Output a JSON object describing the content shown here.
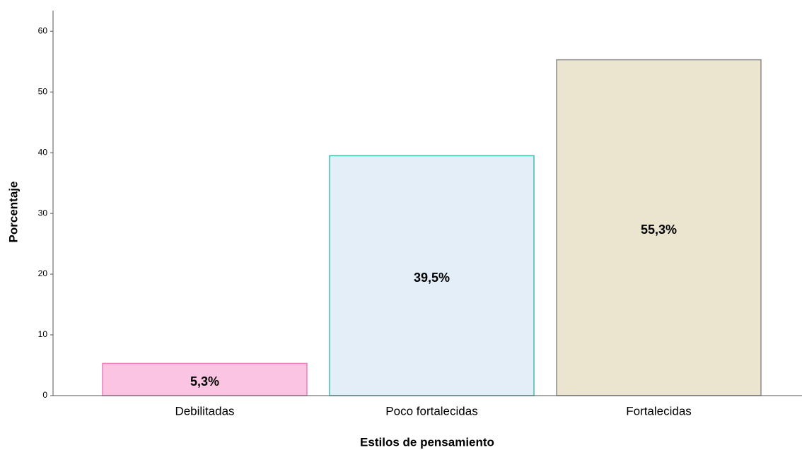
{
  "chart_data": {
    "type": "bar",
    "x_label": "Estilos de pensamiento",
    "y_label": "Porcentaje",
    "categories": [
      "Debilitadas",
      "Poco fortalecidas",
      "Fortalecidas"
    ],
    "values": [
      5.3,
      39.5,
      55.3
    ],
    "value_labels": [
      "5,3%",
      "39,5%",
      "55,3%"
    ],
    "colors": [
      "#fcc4e3",
      "#e3eef9",
      "#ebe5d0"
    ],
    "edge_colors": [
      "#ec7fbd",
      "#3dbfae",
      "#8c8c8c"
    ],
    "ylim": [
      0,
      63.4
    ],
    "yticks": [
      0,
      10,
      20,
      30,
      40,
      50,
      60
    ]
  }
}
